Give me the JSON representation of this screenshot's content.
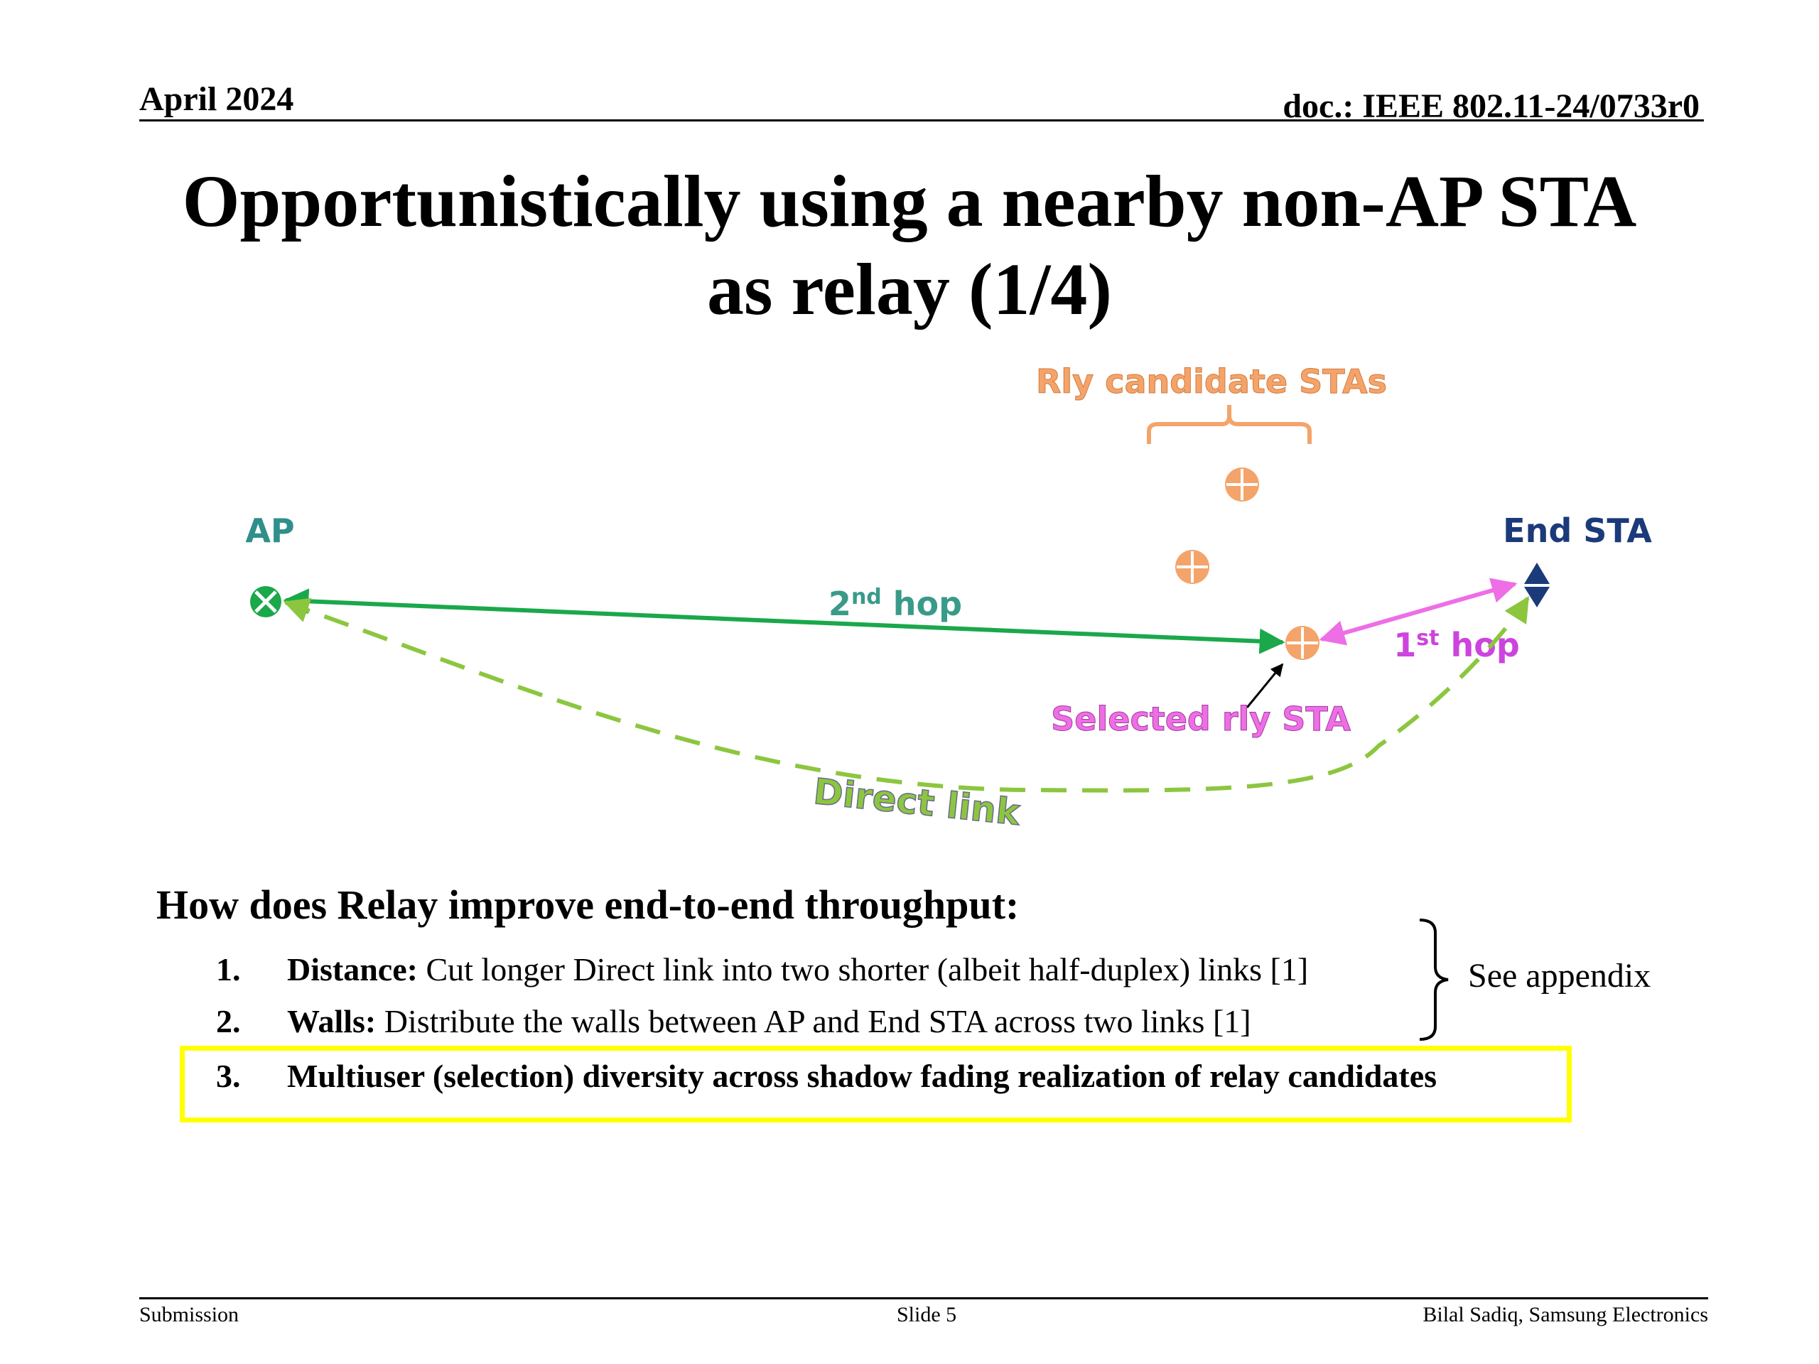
{
  "header": {
    "date": "April 2024",
    "doc": "doc.: IEEE 802.11-24/0733r0"
  },
  "title": {
    "line1": "Opportunistically using a nearby non-AP STA",
    "line2": "as relay (1/4)"
  },
  "diagram": {
    "candidates_label": "Rly candidate STAs",
    "ap_label": "AP",
    "end_sta_label": "End STA",
    "hop2_base": "2",
    "hop2_sup": "nd",
    "hop2_suffix": " hop",
    "hop1_base": "1",
    "hop1_sup": "st",
    "hop1_suffix": " hop",
    "selected_label": "Selected rly STA",
    "direct_label": "Direct link"
  },
  "body": {
    "question": "How does Relay improve end-to-end throughput:",
    "items": [
      {
        "num": "1.",
        "bold": "Distance:",
        "text": " Cut longer Direct link into two shorter (albeit half-duplex) links [1]"
      },
      {
        "num": "2.",
        "bold": "Walls:",
        "text": " Distribute the walls between AP and End STA across two links [1]"
      },
      {
        "num": "3.",
        "bold": "Multiuser (selection) diversity across shadow fading realization of relay candidates",
        "text": ""
      }
    ],
    "appendix": "See appendix"
  },
  "footer": {
    "left": "Submission",
    "center": "Slide 5",
    "right": "Bilal Sadiq, Samsung Electronics"
  },
  "colors": {
    "highlight": "#ffff00",
    "green": "#1aa84a",
    "light_green": "#8cc63f",
    "orange": "#f4a46a",
    "magenta": "#ee6ee6",
    "navy": "#1b3a7a"
  }
}
